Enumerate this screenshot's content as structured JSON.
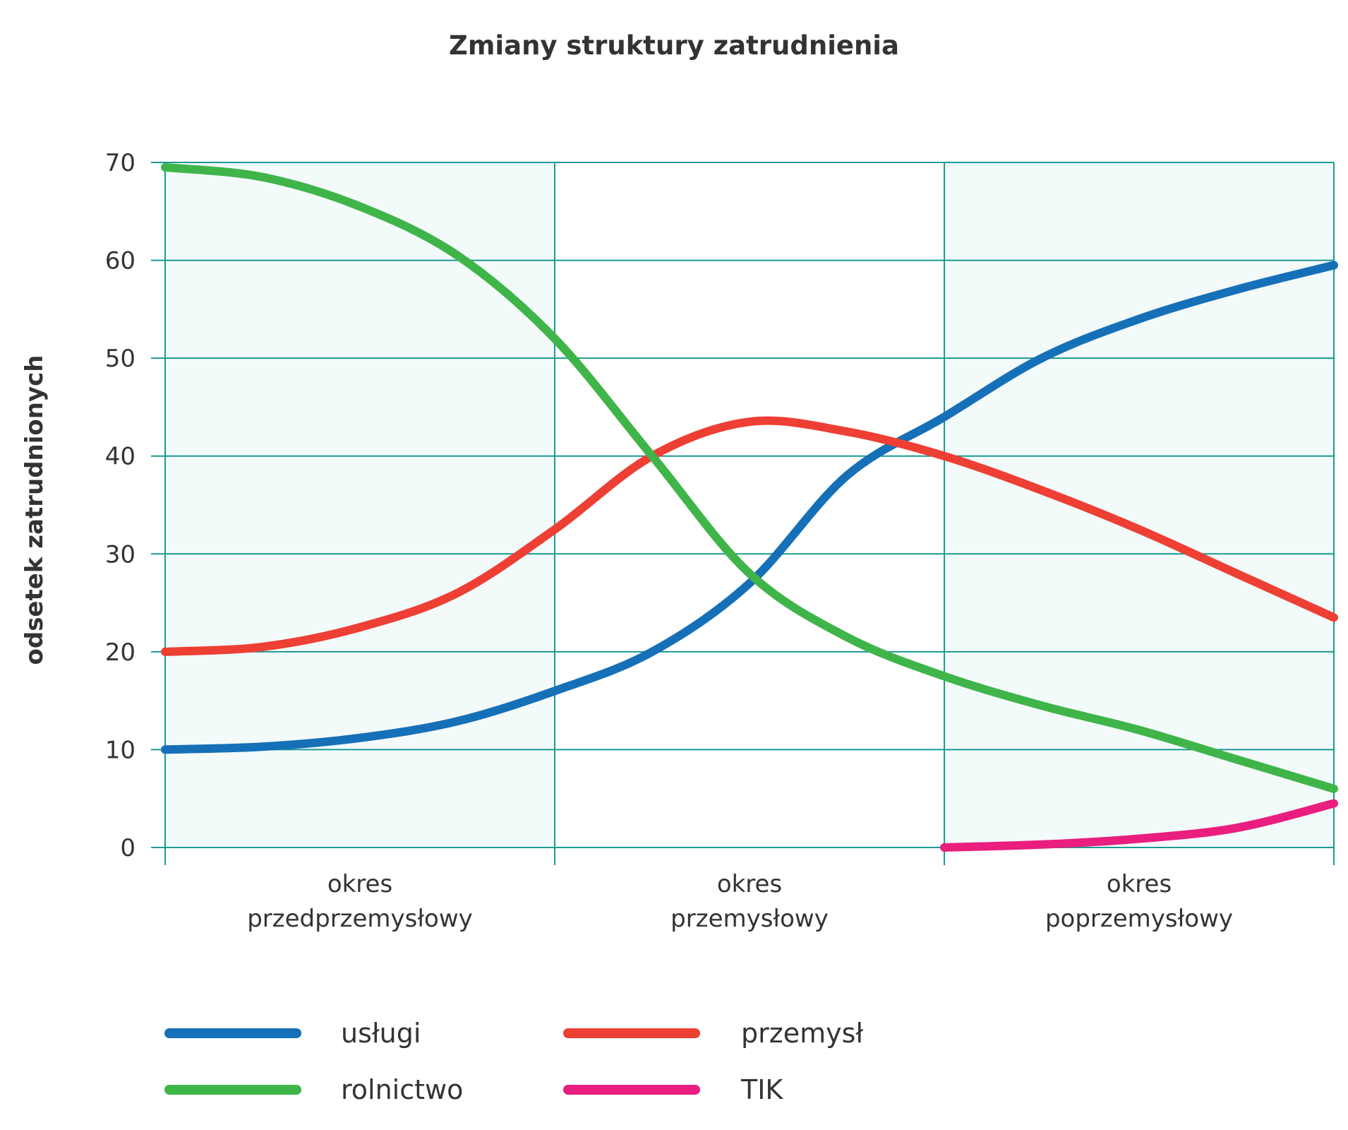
{
  "chart_data": {
    "type": "line",
    "title": "Zmiany struktury zatrudnienia",
    "xlabel": "",
    "ylabel": "odsetek zatrudnionych",
    "ylim": [
      0,
      70
    ],
    "yticks": [
      0,
      10,
      20,
      30,
      40,
      50,
      60,
      70
    ],
    "grid": true,
    "x_range": [
      0,
      3
    ],
    "periods": [
      {
        "line1": "okres",
        "line2": "przedprzemysłowy",
        "shaded": true
      },
      {
        "line1": "okres",
        "line2": "przemysłowy",
        "shaded": false
      },
      {
        "line1": "okres",
        "line2": "poprzemysłowy",
        "shaded": true
      }
    ],
    "legend_position": "bottom",
    "series": [
      {
        "name": "usługi",
        "color": "#1570b8",
        "points": [
          [
            0,
            10
          ],
          [
            0.25,
            10.3
          ],
          [
            0.5,
            11.2
          ],
          [
            0.75,
            12.9
          ],
          [
            1,
            16
          ],
          [
            1.25,
            20
          ],
          [
            1.5,
            27
          ],
          [
            1.75,
            38
          ],
          [
            2,
            44
          ],
          [
            2.25,
            50
          ],
          [
            2.5,
            54
          ],
          [
            2.75,
            57
          ],
          [
            3,
            59.5
          ]
        ]
      },
      {
        "name": "przemysł",
        "color": "#ee3f34",
        "points": [
          [
            0,
            20
          ],
          [
            0.25,
            20.5
          ],
          [
            0.5,
            22.5
          ],
          [
            0.75,
            26
          ],
          [
            1,
            32.5
          ],
          [
            1.25,
            40
          ],
          [
            1.5,
            43.5
          ],
          [
            1.75,
            42.5
          ],
          [
            2,
            40
          ],
          [
            2.25,
            36.5
          ],
          [
            2.5,
            32.5
          ],
          [
            2.75,
            28
          ],
          [
            3,
            23.5
          ]
        ]
      },
      {
        "name": "rolnictwo",
        "color": "#3fb549",
        "points": [
          [
            0,
            69.5
          ],
          [
            0.25,
            68.5
          ],
          [
            0.5,
            65.5
          ],
          [
            0.75,
            60.5
          ],
          [
            1,
            52
          ],
          [
            1.25,
            40
          ],
          [
            1.5,
            28
          ],
          [
            1.75,
            21.5
          ],
          [
            2,
            17.5
          ],
          [
            2.25,
            14.5
          ],
          [
            2.5,
            12
          ],
          [
            2.75,
            9
          ],
          [
            3,
            6
          ]
        ]
      },
      {
        "name": "TIK",
        "color": "#e91e7e",
        "points": [
          [
            2,
            0
          ],
          [
            2.25,
            0.3
          ],
          [
            2.5,
            0.9
          ],
          [
            2.75,
            2
          ],
          [
            3,
            4.5
          ]
        ]
      }
    ]
  }
}
